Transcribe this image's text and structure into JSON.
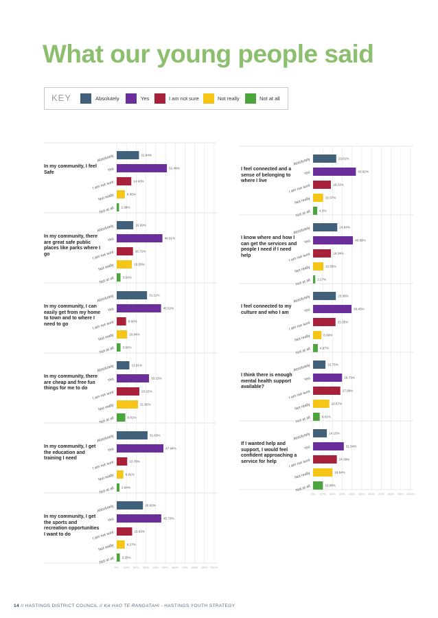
{
  "page_title": "What our young people said",
  "key": {
    "title": "KEY",
    "items": [
      {
        "label": "Absolutely",
        "color": "#41607a"
      },
      {
        "label": "Yes",
        "color": "#6a2f9a"
      },
      {
        "label": "I am not sure",
        "color": "#a8213b"
      },
      {
        "label": "Not really",
        "color": "#f5c518"
      },
      {
        "label": "Not at all",
        "color": "#4ca43d"
      }
    ]
  },
  "footer": {
    "page_number": "14",
    "sep": "//",
    "org": "HASTINGS DISTRICT COUNCIL",
    "subtitle": "KA HAO TE RANGATAHI",
    "strategy": "- HASTINGS YOUTH STRATEGY"
  },
  "chart_data": [
    {
      "type": "bar",
      "orientation": "horizontal",
      "title": "In my community, I feel Safe",
      "categories": [
        "Absolutely",
        "Yes",
        "I am not sure",
        "Not really",
        "Not at all"
      ],
      "values": [
        22.84,
        51.49,
        14.93,
        8.36,
        2.39
      ],
      "labels": [
        "22.84%",
        "51.49%",
        "14.93%",
        "8.36%",
        "2.39%"
      ],
      "xlim": [
        0,
        100
      ]
    },
    {
      "type": "bar",
      "orientation": "horizontal",
      "title": "In my community, there are great safe public places like parks where I go",
      "categories": [
        "Absolutely",
        "Yes",
        "I am not sure",
        "Not really",
        "Not at all"
      ],
      "values": [
        16.99,
        46.91,
        16.71,
        15.59,
        3.91
      ],
      "labels": [
        "16.99%",
        "46.91%",
        "16.71%",
        "15.59%",
        "3.91%"
      ],
      "xlim": [
        0,
        100
      ]
    },
    {
      "type": "bar",
      "orientation": "horizontal",
      "title": "In my community, I can easily get from my home to town and to where I need to go",
      "categories": [
        "Absolutely",
        "Yes",
        "I am not sure",
        "Not really",
        "Not at all"
      ],
      "values": [
        31.11,
        45.52,
        9.6,
        10.64,
        3.92
      ],
      "labels": [
        "31.11%",
        "45.52%",
        "9.60%",
        "10.64%",
        "3.92%"
      ],
      "xlim": [
        0,
        100
      ]
    },
    {
      "type": "bar",
      "orientation": "horizontal",
      "title": "In my community, there are cheap and free fun things for me to do",
      "categories": [
        "Absolutely",
        "Yes",
        "I am not sure",
        "Not really",
        "Not at all"
      ],
      "values": [
        13.01,
        33.15,
        23.22,
        21.82,
        8.81
      ],
      "labels": [
        "13.01%",
        "33.15%",
        "23.22%",
        "21.82%",
        "8.81%"
      ],
      "xlim": [
        0,
        100
      ]
    },
    {
      "type": "bar",
      "orientation": "horizontal",
      "title": "In my community, I get the education and training I need",
      "categories": [
        "Absolutely",
        "Yes",
        "I am not sure",
        "Not really",
        "Not at all"
      ],
      "values": [
        31.63,
        47.94,
        10.78,
        6.81,
        2.84
      ],
      "labels": [
        "31.63%",
        "47.94%",
        "10.78%",
        "6.81%",
        "2.84%"
      ],
      "xlim": [
        0,
        100
      ]
    },
    {
      "type": "bar",
      "orientation": "horizontal",
      "title": "In my community, I get the sports and recreation opportunities I want to do",
      "categories": [
        "Absolutely",
        "Yes",
        "I am not sure",
        "Not really",
        "Not at all"
      ],
      "values": [
        26.93,
        45.72,
        15.83,
        8.27,
        3.25
      ],
      "labels": [
        "26.93%",
        "45.72%",
        "15.83%",
        "8.27%",
        "3.25%"
      ],
      "xlim": [
        0,
        100
      ]
    },
    {
      "type": "bar",
      "orientation": "horizontal",
      "title": "I feel connected and a sense of belonging to where I live",
      "categories": [
        "Absolutely",
        "Yes",
        "I am not sure",
        "Not really",
        "Not at all"
      ],
      "values": [
        23.81,
        43.92,
        18.31,
        10.37,
        4.3
      ],
      "labels": [
        "23.81%",
        "43.92%",
        "18.31%",
        "10.37%",
        "4.3%"
      ],
      "xlim": [
        0,
        100
      ]
    },
    {
      "type": "bar",
      "orientation": "horizontal",
      "title": "I know where and how I can get the services and people I need if I need help",
      "categories": [
        "Absolutely",
        "Yes",
        "I am not sure",
        "Not really",
        "Not at all"
      ],
      "values": [
        24.84,
        40.89,
        18.34,
        10.55,
        2.27
      ],
      "labels": [
        "24.84%",
        "40.89%",
        "18.34%",
        "10.55%",
        "2.27%"
      ],
      "xlim": [
        0,
        100
      ]
    },
    {
      "type": "bar",
      "orientation": "horizontal",
      "title": "I feel connected to my culture and who I am",
      "categories": [
        "Absolutely",
        "Yes",
        "I am not sure",
        "Not really",
        "Not at all"
      ],
      "values": [
        23.38,
        39.45,
        23.05,
        8.66,
        4.87
      ],
      "labels": [
        "23.38%",
        "39.45%",
        "23.05%",
        "8.66%",
        "4.87%"
      ],
      "xlim": [
        0,
        100
      ]
    },
    {
      "type": "bar",
      "orientation": "horizontal",
      "title": "I think there is enough mental health support available?",
      "categories": [
        "Absolutely",
        "Yes",
        "I am not sure",
        "Not really",
        "Not at all"
      ],
      "values": [
        12.75,
        29.73,
        27.99,
        16.67,
        6.81
      ],
      "labels": [
        "12.75%",
        "29.73%",
        "27.99%",
        "16.67%",
        "6.81%"
      ],
      "xlim": [
        0,
        100
      ]
    },
    {
      "type": "bar",
      "orientation": "horizontal",
      "title": "If I wanted help and support, I would feel confident approaching a service for help",
      "categories": [
        "Absolutely",
        "Yes",
        "I am not sure",
        "Not really",
        "Not at all"
      ],
      "values": [
        14.15,
        31.54,
        24.39,
        19.84,
        10.08
      ],
      "labels": [
        "14.15%",
        "31.54%",
        "24.39%",
        "19.84%",
        "10.08%"
      ],
      "xlim": [
        0,
        100
      ]
    }
  ],
  "axis_ticks": [
    "0%",
    "10%",
    "20%",
    "30%",
    "40%",
    "50%",
    "60%",
    "70%",
    "80%",
    "90%",
    "100%"
  ]
}
